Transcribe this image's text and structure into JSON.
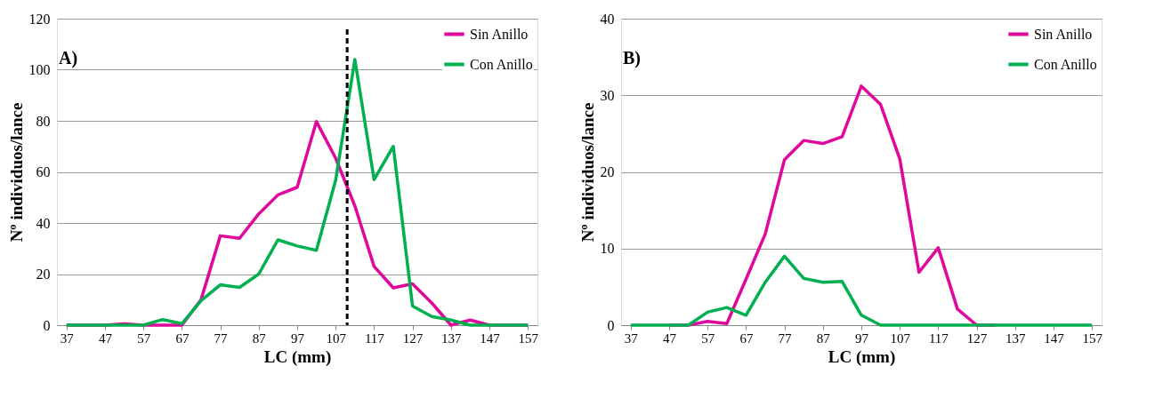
{
  "chart_data": [
    {
      "type": "line",
      "xlabel": "LC (mm)",
      "ylabel": "Nº individuos/lance",
      "annotations": [
        "A)"
      ],
      "x": [
        37,
        42,
        47,
        52,
        57,
        62,
        67,
        72,
        77,
        82,
        87,
        92,
        97,
        102,
        107,
        112,
        117,
        122,
        127,
        132,
        137,
        142,
        147,
        152,
        157
      ],
      "series": [
        {
          "name": "Sin Anillo",
          "color": "#e0079c",
          "values": [
            0,
            0,
            0,
            0.5,
            0,
            0,
            0,
            10,
            35,
            34,
            43.6,
            51,
            54,
            79.7,
            65.4,
            46.7,
            23,
            14.6,
            16.2,
            8.7,
            0,
            2,
            0,
            0,
            0
          ]
        },
        {
          "name": "Con Anillo",
          "color": "#00b050",
          "values": [
            0,
            0,
            0,
            0,
            0,
            2.2,
            0.6,
            9.6,
            15.8,
            14.8,
            20,
            33.4,
            31,
            29.3,
            56.7,
            104,
            57,
            70,
            7.5,
            3.4,
            2,
            0,
            0,
            0,
            0
          ]
        }
      ],
      "xlim": [
        34.5,
        159.5
      ],
      "xticks": [
        37,
        47,
        57,
        67,
        77,
        87,
        97,
        107,
        117,
        127,
        137,
        147,
        157
      ],
      "ylim": [
        0,
        120
      ],
      "yticks": [
        0,
        20,
        40,
        60,
        80,
        100,
        120
      ],
      "ref_lines": [
        {
          "axis": "x",
          "value": 110,
          "color": "#000000",
          "line_style": "dashed"
        }
      ],
      "grid": "y",
      "legend": "top right",
      "line_style": "solid",
      "marker": "none"
    },
    {
      "type": "line",
      "xlabel": "LC (mm)",
      "ylabel": "Nº individuos/lance",
      "annotations": [
        "B)"
      ],
      "x": [
        37,
        42,
        47,
        52,
        57,
        62,
        67,
        72,
        77,
        82,
        87,
        92,
        97,
        102,
        107,
        112,
        117,
        122,
        127,
        132,
        137,
        142,
        147,
        152,
        157
      ],
      "series": [
        {
          "name": "Sin Anillo",
          "color": "#e0079c",
          "values": [
            null,
            null,
            0,
            0,
            0.5,
            0.2,
            6,
            11.9,
            21.6,
            24.1,
            23.7,
            24.6,
            31.2,
            28.8,
            21.7,
            6.9,
            10.1,
            2.1,
            0,
            0,
            null,
            null,
            null,
            null,
            null
          ]
        },
        {
          "name": "Con Anillo",
          "color": "#00b050",
          "values": [
            0,
            0,
            0,
            0,
            1.7,
            2.3,
            1.3,
            5.6,
            9,
            6.1,
            5.6,
            5.7,
            1.3,
            0,
            0,
            0,
            0,
            0,
            0,
            0,
            0,
            0,
            0,
            0,
            0
          ]
        }
      ],
      "xlim": [
        34.5,
        159.5
      ],
      "xticks": [
        37,
        47,
        57,
        67,
        77,
        87,
        97,
        107,
        117,
        127,
        137,
        147,
        157
      ],
      "ylim": [
        0,
        40
      ],
      "yticks": [
        0,
        10,
        20,
        30,
        40
      ],
      "grid": "y",
      "legend": "top right",
      "line_style": "solid",
      "marker": "none"
    }
  ]
}
